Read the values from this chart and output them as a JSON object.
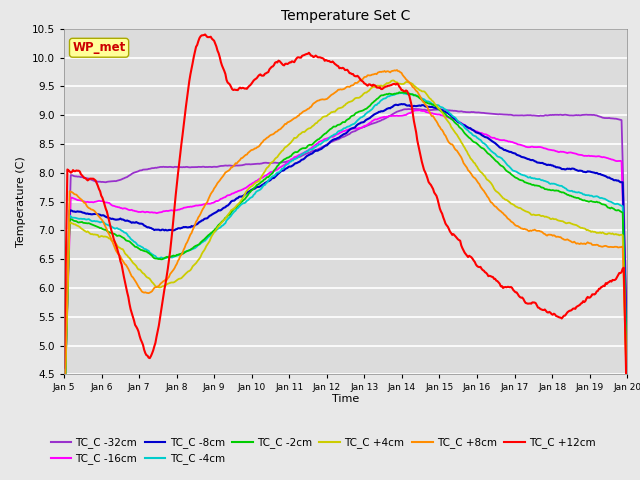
{
  "title": "Temperature Set C",
  "xlabel": "Time",
  "ylabel": "Temperature (C)",
  "ylim": [
    4.5,
    10.5
  ],
  "xlim": [
    0,
    15
  ],
  "x_tick_labels": [
    "Jan 5",
    "Jan 6",
    "Jan 7",
    "Jan 8",
    "Jan 9",
    "Jan 10",
    "Jan 11",
    "Jan 12",
    "Jan 13",
    "Jan 14",
    "Jan 15",
    "Jan 16",
    "Jan 17",
    "Jan 18",
    "Jan 19",
    "Jan 20"
  ],
  "series_colors": {
    "TC_C -32cm": "#9932CC",
    "TC_C -16cm": "#FF00FF",
    "TC_C -8cm": "#0000CD",
    "TC_C -4cm": "#00CCCC",
    "TC_C -2cm": "#00CC00",
    "TC_C +4cm": "#CCCC00",
    "TC_C +8cm": "#FF8C00",
    "TC_C +12cm": "#FF0000"
  },
  "wp_met_box_color": "#FFFF99",
  "wp_met_text_color": "#CC0000",
  "bg_color": "#DCDCDC",
  "fig_bg_color": "#E8E8E8",
  "grid_color": "#FFFFFF"
}
